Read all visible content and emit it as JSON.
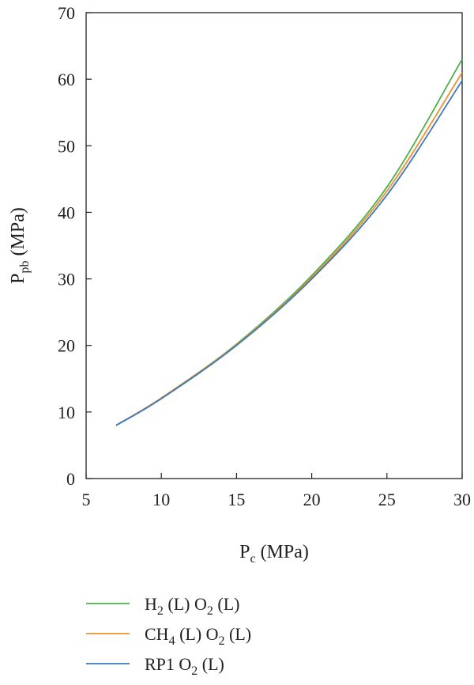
{
  "chart_data": {
    "type": "line",
    "title": "",
    "xlabel": {
      "main": "P",
      "sub": "c",
      "unit": " (MPa)"
    },
    "ylabel": {
      "main": "P",
      "sub": "pb",
      "unit": " (MPa)"
    },
    "xlim": [
      5,
      30
    ],
    "ylim": [
      0,
      70
    ],
    "xticks": [
      5,
      10,
      15,
      20,
      25,
      30
    ],
    "yticks": [
      0,
      10,
      20,
      30,
      40,
      50,
      60,
      70
    ],
    "grid": false,
    "legend_position": "bottom-left",
    "series": [
      {
        "name": "H2 (L) O2 (L)",
        "label_parts": [
          {
            "t": "H"
          },
          {
            "t": "2",
            "sub": true
          },
          {
            "t": " (L) O"
          },
          {
            "t": "2",
            "sub": true
          },
          {
            "t": " (L)"
          }
        ],
        "color": "#4daf4a",
        "x": [
          7,
          10,
          15,
          20,
          25,
          30
        ],
        "y": [
          8.0,
          12.1,
          20.2,
          30.5,
          43.8,
          63.0
        ]
      },
      {
        "name": "CH4 (L) O2 (L)",
        "label_parts": [
          {
            "t": "CH"
          },
          {
            "t": "4",
            "sub": true
          },
          {
            "t": " (L) O"
          },
          {
            "t": "2",
            "sub": true
          },
          {
            "t": " (L)"
          }
        ],
        "color": "#f28e2b",
        "x": [
          7,
          10,
          15,
          20,
          25,
          30
        ],
        "y": [
          8.0,
          12.1,
          20.1,
          30.2,
          43.2,
          61.0
        ]
      },
      {
        "name": "RP1 O2 (L)",
        "label_parts": [
          {
            "t": "RP1 O"
          },
          {
            "t": "2",
            "sub": true
          },
          {
            "t": " (L)"
          }
        ],
        "color": "#3a78c3",
        "x": [
          7,
          10,
          15,
          20,
          25,
          30
        ],
        "y": [
          8.0,
          12.0,
          20.0,
          30.0,
          42.6,
          59.8
        ]
      }
    ]
  }
}
